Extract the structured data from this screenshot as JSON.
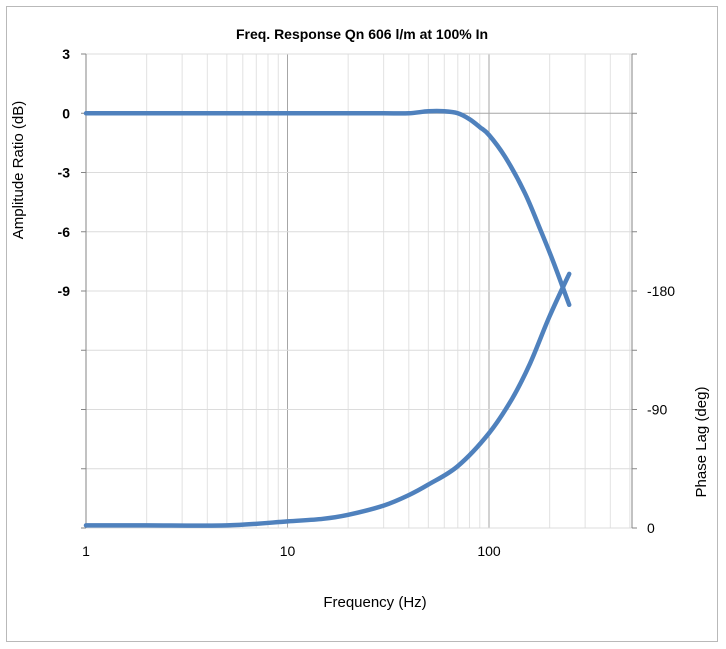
{
  "chart_data": {
    "type": "line",
    "title": "Freq. Response Qn 606 l/m at 100% In",
    "xlabel": "Frequency (Hz)",
    "ylabel_left": "Amplitude Ratio (dB)",
    "ylabel_right": "Phase Lag (deg)",
    "x_scale": "log",
    "xlim": [
      1,
      500
    ],
    "x_ticks": [
      "1",
      "10",
      "100"
    ],
    "x_tick_values": [
      1,
      10,
      100
    ],
    "y_left_ticks": [
      "3",
      "0",
      "-3",
      "-6",
      "-9"
    ],
    "y_left_tick_values": [
      3,
      0,
      -3,
      -6,
      -9
    ],
    "ylim_left": [
      -21,
      3
    ],
    "y_right_ticks": [
      "-180",
      "-90",
      "0"
    ],
    "y_right_tick_values": [
      -180,
      -90,
      0
    ],
    "ylim_right": [
      0,
      -360
    ],
    "grid": true,
    "line_color": "#4f81bd",
    "series": [
      {
        "axis": "left",
        "x": [
          1,
          2,
          5,
          10,
          20,
          30,
          40,
          50,
          60,
          70,
          80,
          90,
          100,
          120,
          150,
          180,
          210,
          250
        ],
        "y": [
          0,
          0,
          0,
          0,
          0,
          0,
          0,
          0.1,
          0.1,
          0,
          -0.3,
          -0.7,
          -1.1,
          -2.2,
          -4.0,
          -5.9,
          -7.6,
          -9.7
        ]
      },
      {
        "axis": "right",
        "x": [
          1,
          2,
          5,
          10,
          15,
          20,
          30,
          40,
          50,
          70,
          100,
          130,
          160,
          200,
          250
        ],
        "y": [
          -2,
          -2,
          -2,
          -5,
          -7,
          -10,
          -17,
          -25,
          -33,
          -47,
          -72,
          -98,
          -125,
          -161,
          -193
        ]
      }
    ]
  }
}
